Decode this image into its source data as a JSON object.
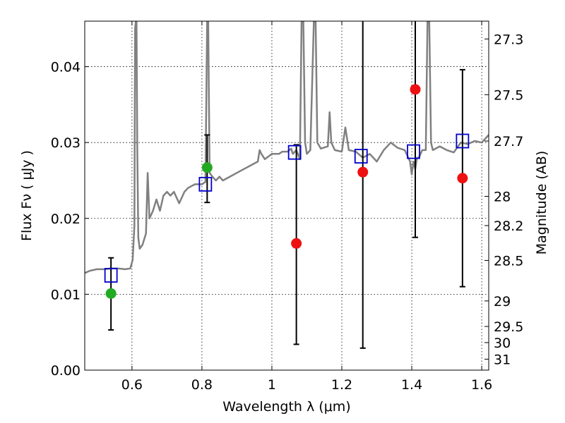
{
  "chart_data": {
    "type": "scatter",
    "xlabel": "Wavelength  λ (μm)",
    "ylabel": "Flux  Fν  ( μJy )",
    "y2label": "Magnitude (AB)",
    "xlim": [
      0.465,
      1.62
    ],
    "ylim": [
      0.0,
      0.046
    ],
    "grid": true,
    "x_ticks": [
      {
        "value": 0.6,
        "label": "0.6"
      },
      {
        "value": 0.8,
        "label": "0.8"
      },
      {
        "value": 1.0,
        "label": "1"
      },
      {
        "value": 1.2,
        "label": "1.2"
      },
      {
        "value": 1.4,
        "label": "1.4"
      },
      {
        "value": 1.6,
        "label": "1.6"
      }
    ],
    "y_ticks": [
      {
        "value": 0.0,
        "label": "0.00"
      },
      {
        "value": 0.01,
        "label": "0.01"
      },
      {
        "value": 0.02,
        "label": "0.02"
      },
      {
        "value": 0.03,
        "label": "0.03"
      },
      {
        "value": 0.04,
        "label": "0.04"
      }
    ],
    "y2_ticks": [
      {
        "value": 27.3,
        "label": "27.3"
      },
      {
        "value": 27.5,
        "label": "27.5"
      },
      {
        "value": 27.7,
        "label": "27.7"
      },
      {
        "value": 28,
        "label": "28"
      },
      {
        "value": 28.2,
        "label": "28.2"
      },
      {
        "value": 28.5,
        "label": "28.5"
      },
      {
        "value": 29,
        "label": "29"
      },
      {
        "value": 29.5,
        "label": "29.5"
      },
      {
        "value": 30,
        "label": "30"
      },
      {
        "value": 31,
        "label": "31"
      }
    ],
    "colors": {
      "model": "#808080",
      "model_photometry": "#0000cc",
      "detections": "#22aa22",
      "non_detections": "#ee1111",
      "errorbar": "#000000"
    },
    "model_spectrum": [
      [
        0.465,
        0.0128
      ],
      [
        0.48,
        0.0131
      ],
      [
        0.5,
        0.0133
      ],
      [
        0.52,
        0.0133
      ],
      [
        0.54,
        0.0134
      ],
      [
        0.56,
        0.0134
      ],
      [
        0.58,
        0.0133
      ],
      [
        0.595,
        0.0134
      ],
      [
        0.602,
        0.0145
      ],
      [
        0.607,
        0.019
      ],
      [
        0.609,
        0.045
      ],
      [
        0.611,
        0.046
      ],
      [
        0.613,
        0.046
      ],
      [
        0.615,
        0.03
      ],
      [
        0.618,
        0.0175
      ],
      [
        0.622,
        0.016
      ],
      [
        0.63,
        0.0165
      ],
      [
        0.64,
        0.018
      ],
      [
        0.645,
        0.026
      ],
      [
        0.65,
        0.02
      ],
      [
        0.66,
        0.021
      ],
      [
        0.67,
        0.0225
      ],
      [
        0.68,
        0.021
      ],
      [
        0.69,
        0.023
      ],
      [
        0.7,
        0.0235
      ],
      [
        0.71,
        0.023
      ],
      [
        0.72,
        0.0235
      ],
      [
        0.73,
        0.0225
      ],
      [
        0.735,
        0.022
      ],
      [
        0.74,
        0.0225
      ],
      [
        0.75,
        0.0235
      ],
      [
        0.76,
        0.024
      ],
      [
        0.78,
        0.0245
      ],
      [
        0.8,
        0.0245
      ],
      [
        0.81,
        0.0248
      ],
      [
        0.815,
        0.046
      ],
      [
        0.818,
        0.046
      ],
      [
        0.822,
        0.026
      ],
      [
        0.83,
        0.0255
      ],
      [
        0.84,
        0.025
      ],
      [
        0.85,
        0.0255
      ],
      [
        0.86,
        0.025
      ],
      [
        0.88,
        0.0255
      ],
      [
        0.9,
        0.026
      ],
      [
        0.92,
        0.0265
      ],
      [
        0.94,
        0.027
      ],
      [
        0.96,
        0.0275
      ],
      [
        0.965,
        0.029
      ],
      [
        0.97,
        0.0285
      ],
      [
        0.98,
        0.0278
      ],
      [
        1.0,
        0.0285
      ],
      [
        1.02,
        0.0285
      ],
      [
        1.03,
        0.0288
      ],
      [
        1.045,
        0.0288
      ],
      [
        1.055,
        0.0292
      ],
      [
        1.06,
        0.0285
      ],
      [
        1.07,
        0.029
      ],
      [
        1.08,
        0.0278
      ],
      [
        1.085,
        0.046
      ],
      [
        1.09,
        0.046
      ],
      [
        1.095,
        0.03
      ],
      [
        1.1,
        0.0285
      ],
      [
        1.11,
        0.029
      ],
      [
        1.12,
        0.046
      ],
      [
        1.125,
        0.046
      ],
      [
        1.13,
        0.03
      ],
      [
        1.14,
        0.0292
      ],
      [
        1.16,
        0.0295
      ],
      [
        1.165,
        0.034
      ],
      [
        1.17,
        0.03
      ],
      [
        1.18,
        0.029
      ],
      [
        1.2,
        0.0288
      ],
      [
        1.21,
        0.032
      ],
      [
        1.22,
        0.029
      ],
      [
        1.24,
        0.0288
      ],
      [
        1.26,
        0.028
      ],
      [
        1.28,
        0.0285
      ],
      [
        1.3,
        0.0275
      ],
      [
        1.32,
        0.029
      ],
      [
        1.34,
        0.03
      ],
      [
        1.36,
        0.0293
      ],
      [
        1.38,
        0.029
      ],
      [
        1.395,
        0.0275
      ],
      [
        1.4,
        0.0258
      ],
      [
        1.405,
        0.0275
      ],
      [
        1.41,
        0.0265
      ],
      [
        1.415,
        0.028
      ],
      [
        1.42,
        0.028
      ],
      [
        1.43,
        0.029
      ],
      [
        1.44,
        0.029
      ],
      [
        1.445,
        0.046
      ],
      [
        1.45,
        0.046
      ],
      [
        1.455,
        0.03
      ],
      [
        1.46,
        0.029
      ],
      [
        1.48,
        0.0295
      ],
      [
        1.5,
        0.029
      ],
      [
        1.52,
        0.0287
      ],
      [
        1.54,
        0.03
      ],
      [
        1.56,
        0.0298
      ],
      [
        1.58,
        0.0302
      ],
      [
        1.6,
        0.03
      ],
      [
        1.62,
        0.031
      ]
    ],
    "model_points": [
      {
        "x": 0.54,
        "y": 0.0125
      },
      {
        "x": 0.81,
        "y": 0.0245
      },
      {
        "x": 1.065,
        "y": 0.0287
      },
      {
        "x": 1.255,
        "y": 0.0282
      },
      {
        "x": 1.405,
        "y": 0.0288
      },
      {
        "x": 1.545,
        "y": 0.0302
      }
    ],
    "detections": [
      {
        "x": 0.54,
        "y": 0.0101
      },
      {
        "x": 0.815,
        "y": 0.0267
      }
    ],
    "non_detections": [
      {
        "x": 1.07,
        "y": 0.0167
      },
      {
        "x": 1.26,
        "y": 0.0261
      },
      {
        "x": 1.41,
        "y": 0.037
      },
      {
        "x": 1.545,
        "y": 0.0253
      }
    ],
    "error_bars": [
      {
        "x": 0.54,
        "low": 0.0053,
        "high": 0.0148
      },
      {
        "x": 0.815,
        "low": 0.0221,
        "high": 0.031
      },
      {
        "x": 1.07,
        "low": 0.0034,
        "high": 0.0297
      },
      {
        "x": 1.26,
        "low": 0.0029,
        "high": 0.046
      },
      {
        "x": 1.41,
        "low": 0.0175,
        "high": 0.046
      },
      {
        "x": 1.545,
        "low": 0.011,
        "high": 0.0396
      }
    ]
  }
}
